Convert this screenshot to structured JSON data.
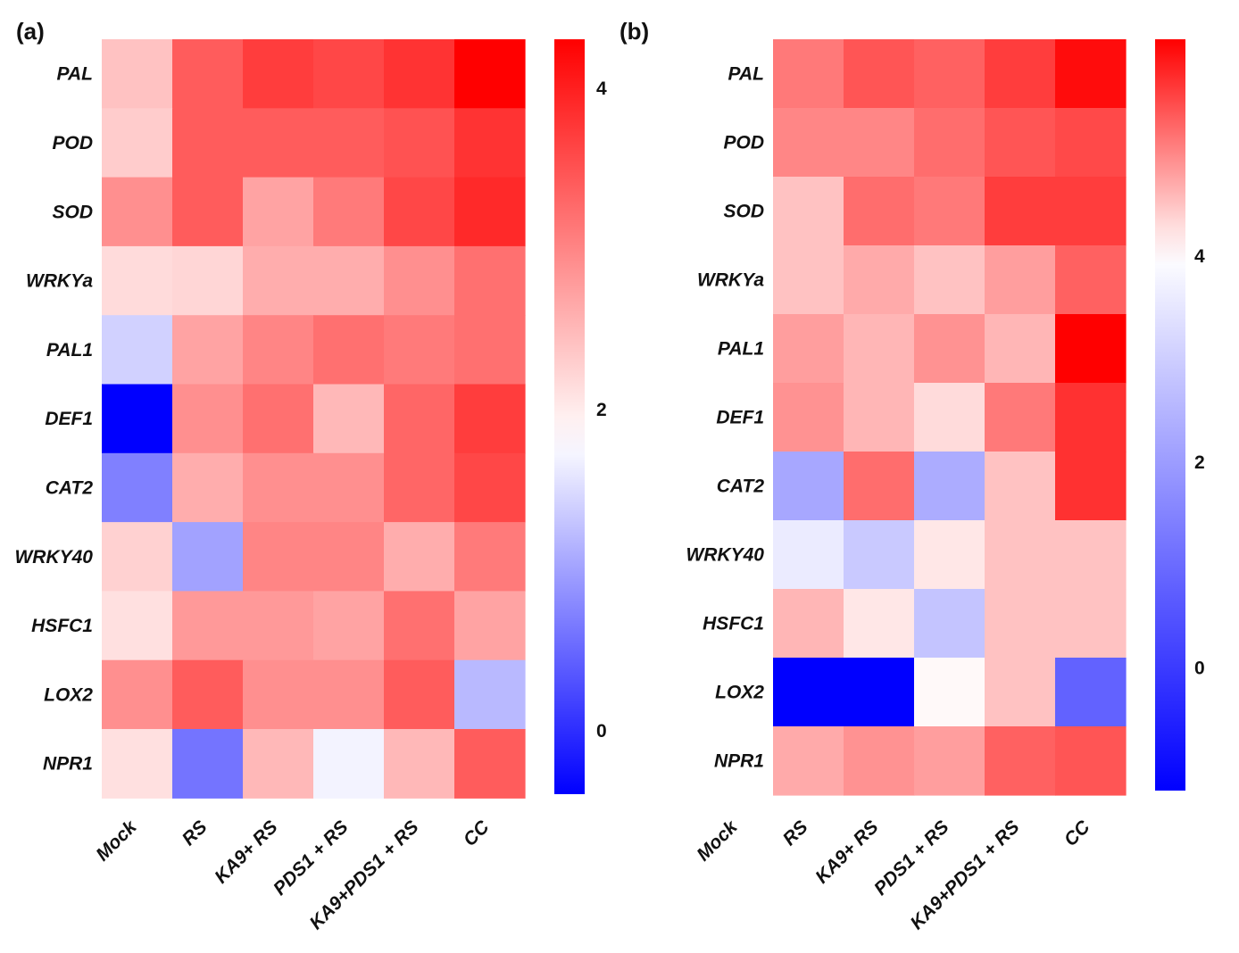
{
  "colors": {
    "low": "#0000ff",
    "mid": "#ffffff",
    "high": "#ff0000"
  },
  "chart_data": [
    {
      "type": "heatmap",
      "panel_label": "(a)",
      "rows": [
        "PAL",
        "POD",
        "SOD",
        "WRKYa",
        "PAL1",
        "DEF1",
        "CAT2",
        "WRKY40",
        "HSFC1",
        "LOX2",
        "NPR1"
      ],
      "columns": [
        "Mock",
        "RS",
        "KA9+ RS",
        "PDS1 + RS",
        "KA9+PDS1 + RS",
        "CC"
      ],
      "values": [
        [
          2.4,
          3.4,
          3.7,
          3.6,
          3.8,
          4.3
        ],
        [
          2.3,
          3.4,
          3.4,
          3.4,
          3.5,
          3.8
        ],
        [
          2.9,
          3.4,
          2.7,
          3.1,
          3.6,
          3.9
        ],
        [
          2.15,
          2.2,
          2.6,
          2.6,
          2.9,
          3.2
        ],
        [
          1.4,
          2.7,
          3.0,
          3.2,
          3.1,
          3.2
        ],
        [
          -0.4,
          2.9,
          3.2,
          2.5,
          3.3,
          3.7
        ],
        [
          0.7,
          2.6,
          2.9,
          2.9,
          3.3,
          3.6
        ],
        [
          2.25,
          1.0,
          3.0,
          3.0,
          2.6,
          3.1
        ],
        [
          2.1,
          2.8,
          2.8,
          2.7,
          3.2,
          2.7
        ],
        [
          2.9,
          3.4,
          2.9,
          2.9,
          3.4,
          1.2
        ],
        [
          2.1,
          0.6,
          2.5,
          1.7,
          2.5,
          3.4
        ]
      ],
      "vmin": -0.4,
      "vmid": 1.8,
      "vmax": 4.3,
      "colorbar_ticks": [
        0,
        2,
        4
      ],
      "colorbar_tick_labels": [
        "0",
        "2",
        "4"
      ]
    },
    {
      "type": "heatmap",
      "panel_label": "(b)",
      "rows": [
        "PAL",
        "POD",
        "SOD",
        "WRKYa",
        "PAL1",
        "DEF1",
        "CAT2",
        "WRKY40",
        "HSFC1",
        "LOX2",
        "NPR1"
      ],
      "columns": [
        "Mock",
        "RS",
        "KA9+ RS",
        "PDS1 + RS",
        "KA9+PDS1 + RS",
        "CC"
      ],
      "visible_columns": [
        "RS",
        "KA9+ RS",
        "PDS1 + RS",
        "KA9+PDS1 + RS",
        "CC"
      ],
      "values": [
        [
          5.1,
          5.4,
          5.3,
          5.6,
          6.0
        ],
        [
          5.0,
          5.0,
          5.2,
          5.4,
          5.5
        ],
        [
          4.5,
          5.2,
          5.1,
          5.6,
          5.6
        ],
        [
          4.5,
          4.7,
          4.5,
          4.8,
          5.3
        ],
        [
          4.8,
          4.6,
          4.9,
          4.6,
          6.1
        ],
        [
          4.9,
          4.6,
          4.3,
          5.1,
          5.7
        ],
        [
          2.2,
          5.2,
          2.3,
          4.5,
          5.7
        ],
        [
          3.6,
          2.9,
          4.2,
          4.5,
          4.5
        ],
        [
          4.6,
          4.2,
          2.8,
          4.5,
          4.5
        ],
        [
          -1.2,
          -1.2,
          4.05,
          4.5,
          0.8
        ],
        [
          4.7,
          4.9,
          4.8,
          5.3,
          5.4
        ]
      ],
      "vmin": -1.2,
      "vmid": 4.0,
      "vmax": 6.1,
      "colorbar_ticks": [
        0,
        2,
        4
      ],
      "colorbar_tick_labels": [
        "0",
        "2",
        "4"
      ]
    }
  ]
}
